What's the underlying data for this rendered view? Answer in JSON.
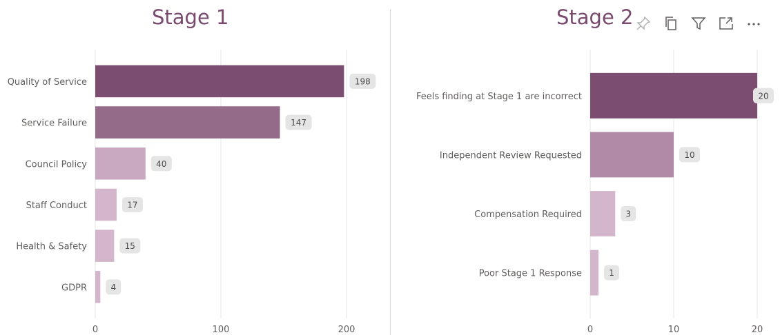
{
  "toolbar": {
    "icons": [
      "pin-icon",
      "copy-icon",
      "filter-icon",
      "focus-mode-icon",
      "more-options-icon"
    ],
    "icon_color": "#605e5c"
  },
  "chart_data": [
    {
      "type": "bar",
      "orientation": "horizontal",
      "title": "Stage 1",
      "categories": [
        "Quality of Service",
        "Service Failure",
        "Council Policy",
        "Staff Conduct",
        "Health & Safety",
        "GDPR"
      ],
      "values": [
        198,
        147,
        40,
        17,
        15,
        4
      ],
      "colors": [
        "#7b4d70",
        "#956b8a",
        "#c9a9c2",
        "#d4b6cc",
        "#d4b6cc",
        "#d4b6cc"
      ],
      "xlim": [
        0,
        200
      ],
      "xticks": [
        "0",
        "100",
        "200"
      ],
      "grid": true,
      "data_labels": true
    },
    {
      "type": "bar",
      "orientation": "horizontal",
      "title": "Stage 2",
      "categories": [
        "Feels finding at Stage 1 are incorrect",
        "Independent Review Requested",
        "Compensation Required",
        "Poor Stage 1 Response"
      ],
      "values": [
        20,
        10,
        3,
        1
      ],
      "colors": [
        "#7b4d70",
        "#b08aa6",
        "#d4b6cc",
        "#d4b6cc"
      ],
      "xlim": [
        0,
        20
      ],
      "xticks": [
        "0",
        "10",
        "20"
      ],
      "grid": true,
      "data_labels": true
    }
  ]
}
